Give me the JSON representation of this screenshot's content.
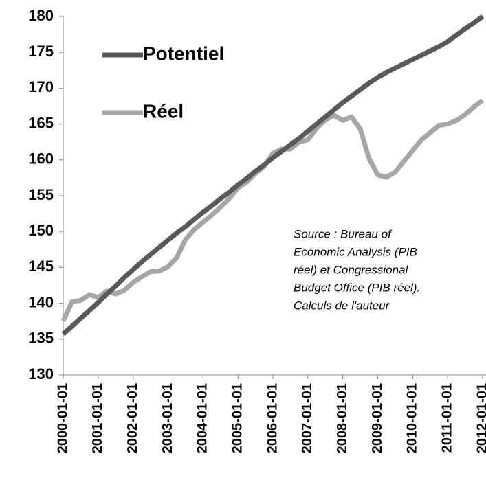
{
  "chart_data": {
    "type": "line",
    "categories": [
      "2000-01-01",
      null,
      null,
      null,
      "2001-01-01",
      null,
      null,
      null,
      "2002-01-01",
      null,
      null,
      null,
      "2003-01-01",
      null,
      null,
      null,
      "2004-01-01",
      null,
      null,
      null,
      "2005-01-01",
      null,
      null,
      null,
      "2006-01-01",
      null,
      null,
      null,
      "2007-01-01",
      null,
      null,
      null,
      "2008-01-01",
      null,
      null,
      null,
      "2009-01-01",
      null,
      null,
      null,
      "2010-01-01",
      null,
      null,
      null,
      "2011-01-01",
      null,
      null,
      null,
      "2012-01-01"
    ],
    "series": [
      {
        "name": "Potentiel",
        "color": "#595959",
        "values": [
          135.7,
          136.8,
          137.9,
          139.0,
          140.1,
          141.3,
          142.4,
          143.6,
          144.7,
          145.8,
          146.8,
          147.8,
          148.8,
          149.8,
          150.7,
          151.7,
          152.7,
          153.6,
          154.6,
          155.5,
          156.5,
          157.4,
          158.4,
          159.3,
          160.3,
          161.2,
          162.1,
          163.0,
          164.0,
          165.0,
          166.0,
          167.0,
          168.0,
          168.9,
          169.8,
          170.7,
          171.5,
          172.2,
          172.8,
          173.4,
          174.0,
          174.6,
          175.2,
          175.8,
          176.5,
          177.4,
          178.3,
          179.1,
          180.0
        ]
      },
      {
        "name": "Réel",
        "color": "#a6a6a6",
        "values": [
          137.5,
          140.2,
          140.4,
          141.2,
          140.8,
          141.7,
          141.3,
          141.8,
          142.9,
          143.7,
          144.4,
          144.5,
          145.1,
          146.4,
          148.9,
          150.3,
          151.3,
          152.3,
          153.4,
          154.6,
          156.1,
          156.9,
          158.1,
          159.1,
          160.9,
          161.5,
          161.5,
          162.5,
          162.8,
          164.4,
          165.6,
          166.2,
          165.5,
          166.0,
          164.3,
          160.2,
          157.9,
          157.6,
          158.3,
          159.8,
          161.3,
          162.8,
          163.8,
          164.8,
          165.0,
          165.5,
          166.3,
          167.4,
          168.3
        ]
      }
    ],
    "ylim": [
      130,
      180
    ],
    "yticks": [
      130,
      135,
      140,
      145,
      150,
      155,
      160,
      165,
      170,
      175,
      180
    ],
    "annotation": [
      "Source : Bureau of",
      "Economic Analysis (PIB",
      "réel) et Congressional",
      "Budget Office (PIB  réel).",
      "Calculs de l'auteur"
    ]
  }
}
